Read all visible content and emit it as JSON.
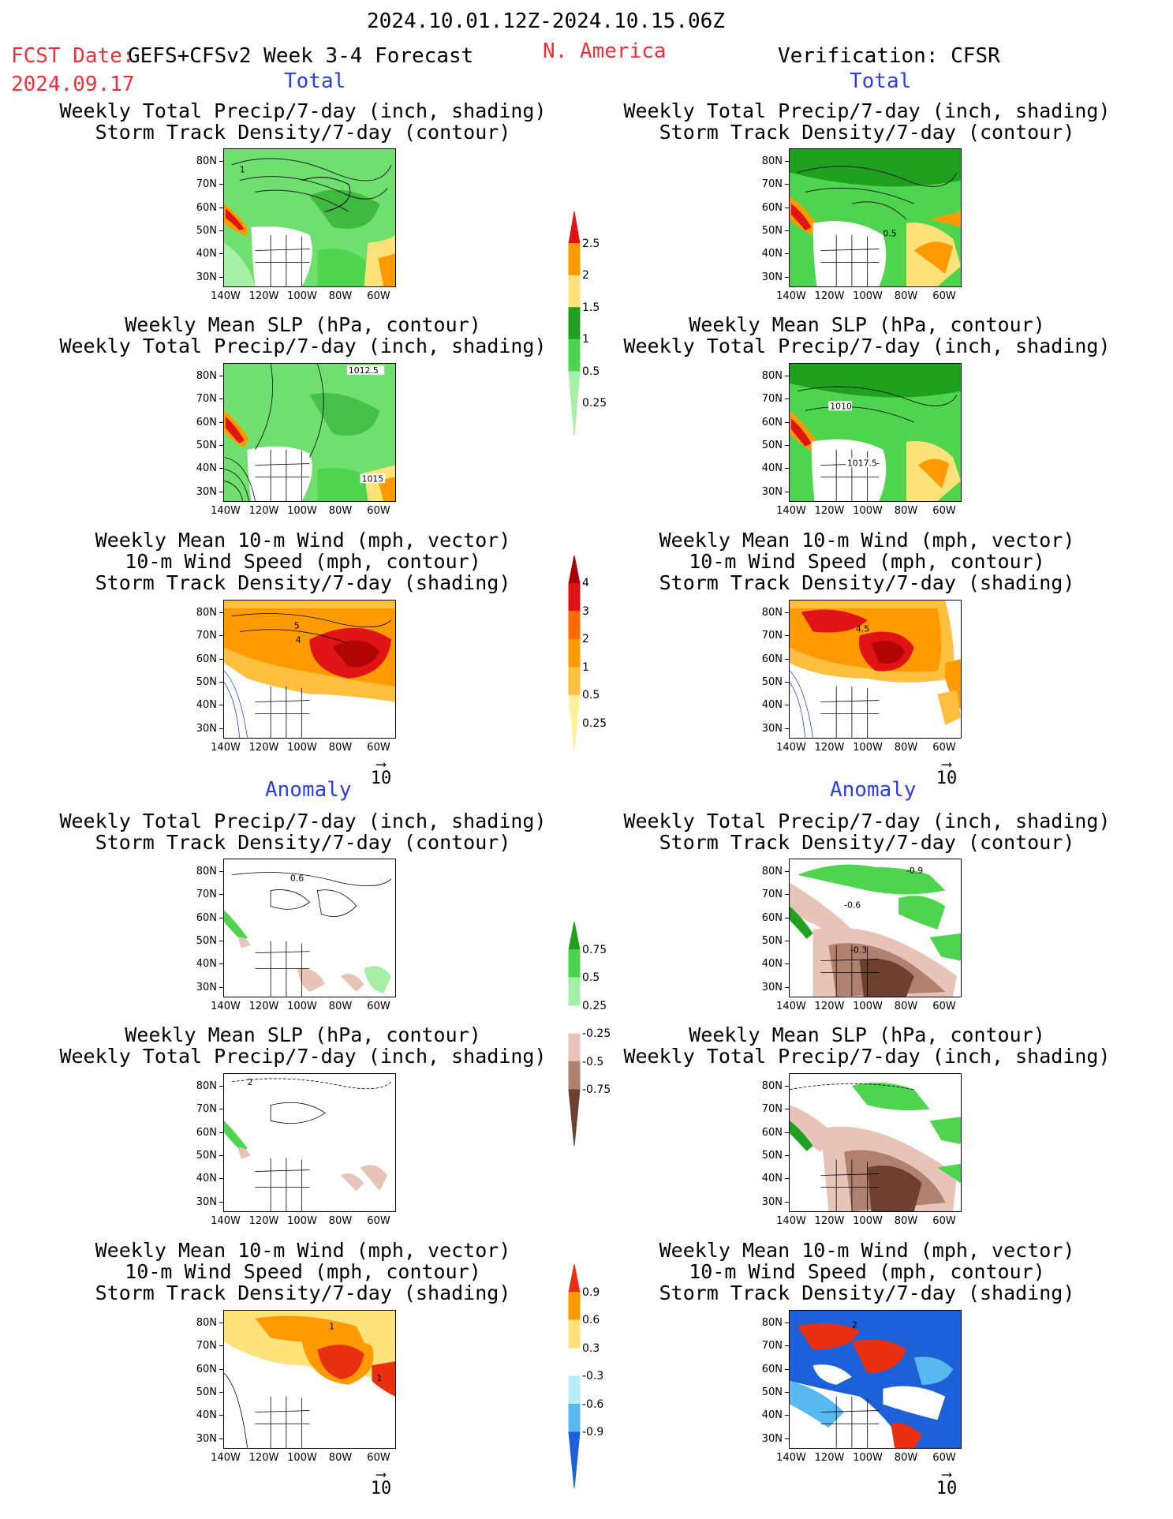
{
  "header": {
    "date_range": "2024.10.01.12Z-2024.10.15.06Z",
    "fcst_label": "FCST Date:",
    "forecast_title": "GEFS+CFSv2 Week 3-4 Forecast",
    "region": "N. America",
    "verification": "Verification: CFSR",
    "fcst_date": "2024.09.17"
  },
  "sections": {
    "total": "Total",
    "anomaly": "Anomaly"
  },
  "panel_titles": {
    "precip_storm": "Weekly Total Precip/7-day (inch, shading)\nStorm Track Density/7-day (contour)",
    "slp_precip": "Weekly Mean SLP (hPa, contour)\nWeekly Total Precip/7-day (inch, shading)",
    "wind_storm": "Weekly Mean 10-m Wind (mph, vector)\n10-m Wind Speed (mph, contour)\nStorm Track Density/7-day (shading)"
  },
  "axes": {
    "lat_labels": [
      "80N",
      "70N",
      "60N",
      "50N",
      "40N",
      "30N"
    ],
    "lon_labels": [
      "140W",
      "120W",
      "100W",
      "80W",
      "60W"
    ]
  },
  "vector_reference": "10",
  "contour_labels": {
    "p1_left": "1",
    "p1_right": "0.5",
    "p2_left_a": "1012.5",
    "p2_left_b": "1015",
    "p2_right_a": "1010",
    "p2_right_b": "1017.5",
    "p3_left_a": "5",
    "p3_left_b": "4",
    "p3_right": "4.5",
    "a1_left": "0.6",
    "a1_right_a": "-0.9",
    "a1_right_b": "-0.6",
    "a1_right_c": "-0.3",
    "a2_left": "2",
    "a3_left_a": "1",
    "a3_left_b": "1",
    "a3_right": "2"
  },
  "colorbars": {
    "total_precip": {
      "labels": [
        "2.5",
        "2",
        "1.5",
        "1",
        "0.5",
        "0.25"
      ],
      "colors": [
        "#e01414",
        "#ff9a00",
        "#ffe27a",
        "#1fa01f",
        "#4fd44f",
        "#a6f0a6"
      ]
    },
    "total_storm": {
      "labels": [
        "4",
        "3",
        "2",
        "1",
        "0.5",
        "0.25"
      ],
      "colors": [
        "#a50000",
        "#e01414",
        "#ff6a00",
        "#ff9a00",
        "#ffc040",
        "#fff0a0"
      ]
    },
    "anom_precip": {
      "labels": [
        "0.75",
        "0.5",
        "0.25",
        "-0.25",
        "-0.5",
        "-0.75"
      ],
      "colors": [
        "#1fa01f",
        "#4fd44f",
        "#a6f0a6",
        "#ffffff",
        "#e8c4b8",
        "#b08070",
        "#6e4030"
      ]
    },
    "anom_storm": {
      "labels": [
        "0.9",
        "0.6",
        "0.3",
        "-0.3",
        "-0.6",
        "-0.9"
      ],
      "colors": [
        "#e83010",
        "#ff9a00",
        "#ffe27a",
        "#ffffff",
        "#b8ecf8",
        "#58b8f0",
        "#1e60d8"
      ]
    }
  },
  "chart_data": [
    {
      "type": "heatmap",
      "title": "Weekly Total Precip/7-day (inch, shading)",
      "subtitle": "Storm Track Density/7-day (contour)",
      "section": "Total",
      "source": "GEFS+CFSv2 Week 3-4 Forecast",
      "region": "N. America",
      "xlabel": "",
      "ylabel": "",
      "x_ticks": [
        "140W",
        "120W",
        "100W",
        "80W",
        "60W"
      ],
      "y_ticks": [
        "80N",
        "70N",
        "60N",
        "50N",
        "40N",
        "30N"
      ],
      "levels": [
        0.25,
        0.5,
        1,
        1.5,
        2,
        2.5
      ]
    },
    {
      "type": "heatmap",
      "title": "Weekly Total Precip/7-day (inch, shading)",
      "subtitle": "Storm Track Density/7-day (contour)",
      "section": "Total",
      "source": "Verification: CFSR",
      "region": "N. America",
      "xlabel": "",
      "ylabel": "",
      "x_ticks": [
        "140W",
        "120W",
        "100W",
        "80W",
        "60W"
      ],
      "y_ticks": [
        "80N",
        "70N",
        "60N",
        "50N",
        "40N",
        "30N"
      ],
      "levels": [
        0.25,
        0.5,
        1,
        1.5,
        2,
        2.5
      ]
    },
    {
      "type": "heatmap",
      "title": "Weekly Mean SLP (hPa, contour)",
      "subtitle": "Weekly Total Precip/7-day (inch, shading)",
      "section": "Total",
      "source": "GEFS+CFSv2 Week 3-4 Forecast",
      "contour_labels": [
        1012.5,
        1015
      ],
      "levels": [
        0.25,
        0.5,
        1,
        1.5,
        2,
        2.5
      ]
    },
    {
      "type": "heatmap",
      "title": "Weekly Mean SLP (hPa, contour)",
      "subtitle": "Weekly Total Precip/7-day (inch, shading)",
      "section": "Total",
      "source": "Verification: CFSR",
      "contour_labels": [
        1010,
        1017.5
      ],
      "levels": [
        0.25,
        0.5,
        1,
        1.5,
        2,
        2.5
      ]
    },
    {
      "type": "heatmap",
      "title": "Weekly Mean 10-m Wind (mph, vector)",
      "subtitle": "10-m Wind Speed (mph, contour); Storm Track Density/7-day (shading)",
      "section": "Total",
      "source": "GEFS+CFSv2 Week 3-4 Forecast",
      "contour_labels": [
        5,
        4
      ],
      "levels": [
        0.25,
        0.5,
        1,
        2,
        3,
        4
      ],
      "vector_reference": 10
    },
    {
      "type": "heatmap",
      "title": "Weekly Mean 10-m Wind (mph, vector)",
      "subtitle": "10-m Wind Speed (mph, contour); Storm Track Density/7-day (shading)",
      "section": "Total",
      "source": "Verification: CFSR",
      "contour_labels": [
        4.5
      ],
      "levels": [
        0.25,
        0.5,
        1,
        2,
        3,
        4
      ],
      "vector_reference": 10
    },
    {
      "type": "heatmap",
      "title": "Weekly Total Precip/7-day (inch, shading)",
      "subtitle": "Storm Track Density/7-day (contour)",
      "section": "Anomaly",
      "source": "GEFS+CFSv2 Week 3-4 Forecast",
      "contour_labels": [
        0.6
      ],
      "levels": [
        -0.75,
        -0.5,
        -0.25,
        0.25,
        0.5,
        0.75
      ]
    },
    {
      "type": "heatmap",
      "title": "Weekly Total Precip/7-day (inch, shading)",
      "subtitle": "Storm Track Density/7-day (contour)",
      "section": "Anomaly",
      "source": "Verification: CFSR",
      "contour_labels": [
        -0.9,
        -0.6,
        -0.3
      ],
      "levels": [
        -0.75,
        -0.5,
        -0.25,
        0.25,
        0.5,
        0.75
      ]
    },
    {
      "type": "heatmap",
      "title": "Weekly Mean SLP (hPa, contour)",
      "subtitle": "Weekly Total Precip/7-day (inch, shading)",
      "section": "Anomaly",
      "source": "GEFS+CFSv2 Week 3-4 Forecast",
      "contour_labels": [
        2
      ],
      "levels": [
        -0.75,
        -0.5,
        -0.25,
        0.25,
        0.5,
        0.75
      ]
    },
    {
      "type": "heatmap",
      "title": "Weekly Mean SLP (hPa, contour)",
      "subtitle": "Weekly Total Precip/7-day (inch, shading)",
      "section": "Anomaly",
      "source": "Verification: CFSR",
      "levels": [
        -0.75,
        -0.5,
        -0.25,
        0.25,
        0.5,
        0.75
      ]
    },
    {
      "type": "heatmap",
      "title": "Weekly Mean 10-m Wind (mph, vector)",
      "subtitle": "10-m Wind Speed (mph, contour); Storm Track Density/7-day (shading)",
      "section": "Anomaly",
      "source": "GEFS+CFSv2 Week 3-4 Forecast",
      "contour_labels": [
        1,
        1
      ],
      "levels": [
        -0.9,
        -0.6,
        -0.3,
        0.3,
        0.6,
        0.9
      ],
      "vector_reference": 10
    },
    {
      "type": "heatmap",
      "title": "Weekly Mean 10-m Wind (mph, vector)",
      "subtitle": "10-m Wind Speed (mph, contour); Storm Track Density/7-day (shading)",
      "section": "Anomaly",
      "source": "Verification: CFSR",
      "contour_labels": [
        2
      ],
      "levels": [
        -0.9,
        -0.6,
        -0.3,
        0.3,
        0.6,
        0.9
      ],
      "vector_reference": 10
    }
  ]
}
